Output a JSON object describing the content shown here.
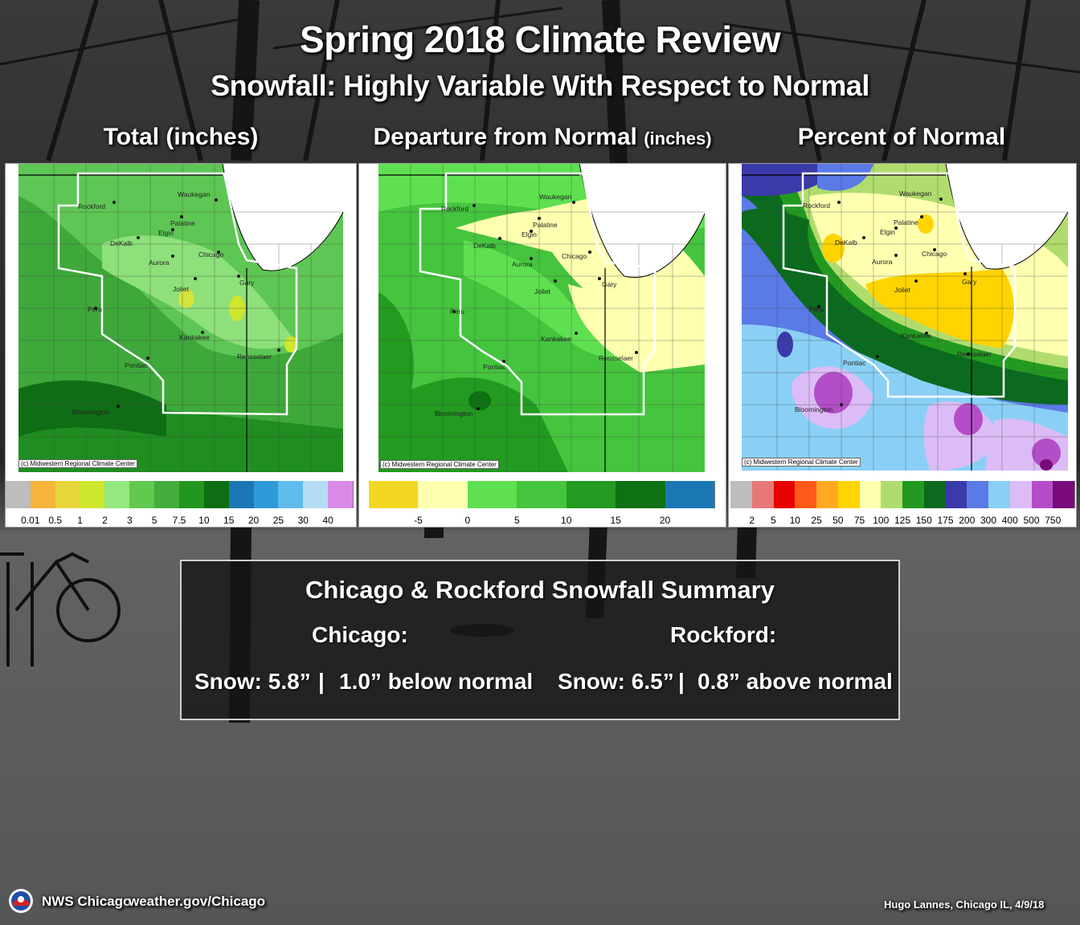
{
  "title": "Spring 2018 Climate Review",
  "subtitle": "Snowfall: Highly Variable With Respect to Normal",
  "panels": [
    {
      "title": "Total (inches)",
      "credit": "(c) Midwestern Regional Climate Center",
      "legend_colors": [
        "#bdbdbd",
        "#f5b43a",
        "#e6d63a",
        "#cde62e",
        "#93e880",
        "#62c950",
        "#44ad3c",
        "#22961f",
        "#0d6e13",
        "#1b78b5",
        "#2f9ad9",
        "#5fbcec",
        "#b6dcf5",
        "#d98ae6"
      ],
      "legend_ticks": [
        "0.01",
        "0.5",
        "1",
        "2",
        "3",
        "5",
        "7.5",
        "10",
        "15",
        "20",
        "25",
        "30",
        "40"
      ]
    },
    {
      "title": "Departure from Normal",
      "title_unit": "(inches)",
      "credit": "(c) Midwestern Regional Climate Center",
      "legend_colors": [
        "#f2d823",
        "#ffffb0",
        "#5ee050",
        "#45c43e",
        "#239a20",
        "#0e7214",
        "#1b78b5"
      ],
      "legend_ticks": [
        "-5",
        "0",
        "5",
        "10",
        "15",
        "20"
      ]
    },
    {
      "title": "Percent of Normal",
      "credit": "(c) Midwestern Regional Climate Center",
      "legend_colors": [
        "#bdbdbd",
        "#e87878",
        "#e60000",
        "#ff5a1a",
        "#ffaa22",
        "#ffd400",
        "#ffffb0",
        "#b0dc6e",
        "#229a20",
        "#0b6a1e",
        "#3a3aaa",
        "#5a7ae6",
        "#8ad0f6",
        "#dcbcf6",
        "#b44ec8",
        "#7a0a7a"
      ],
      "legend_ticks": [
        "2",
        "5",
        "10",
        "25",
        "50",
        "75",
        "100",
        "125",
        "150",
        "175",
        "200",
        "300",
        "400",
        "500",
        "750"
      ]
    }
  ],
  "cities": [
    "Rockford",
    "Waukegan",
    "Palatine",
    "Elgin",
    "DeKalb",
    "Aurora",
    "Chicago",
    "Gary",
    "Joliet",
    "Peru",
    "Kankakee",
    "Rensselaer",
    "Pontiac",
    "Bloomington"
  ],
  "summary": {
    "heading": "Chicago & Rockford Snowfall Summary",
    "chicago": {
      "label": "Chicago:",
      "snow": "Snow:  5.8”",
      "separator": "|",
      "departure": "1.0” below normal"
    },
    "rockford": {
      "label": "Rockford:",
      "snow": "Snow: 6.5”",
      "separator": "|",
      "departure": "0.8” above normal"
    }
  },
  "footer": {
    "office": "NWS Chicago",
    "website": "weather.gov/Chicago",
    "photo_credit": "Hugo Lannes, Chicago IL,  4/9/18"
  }
}
